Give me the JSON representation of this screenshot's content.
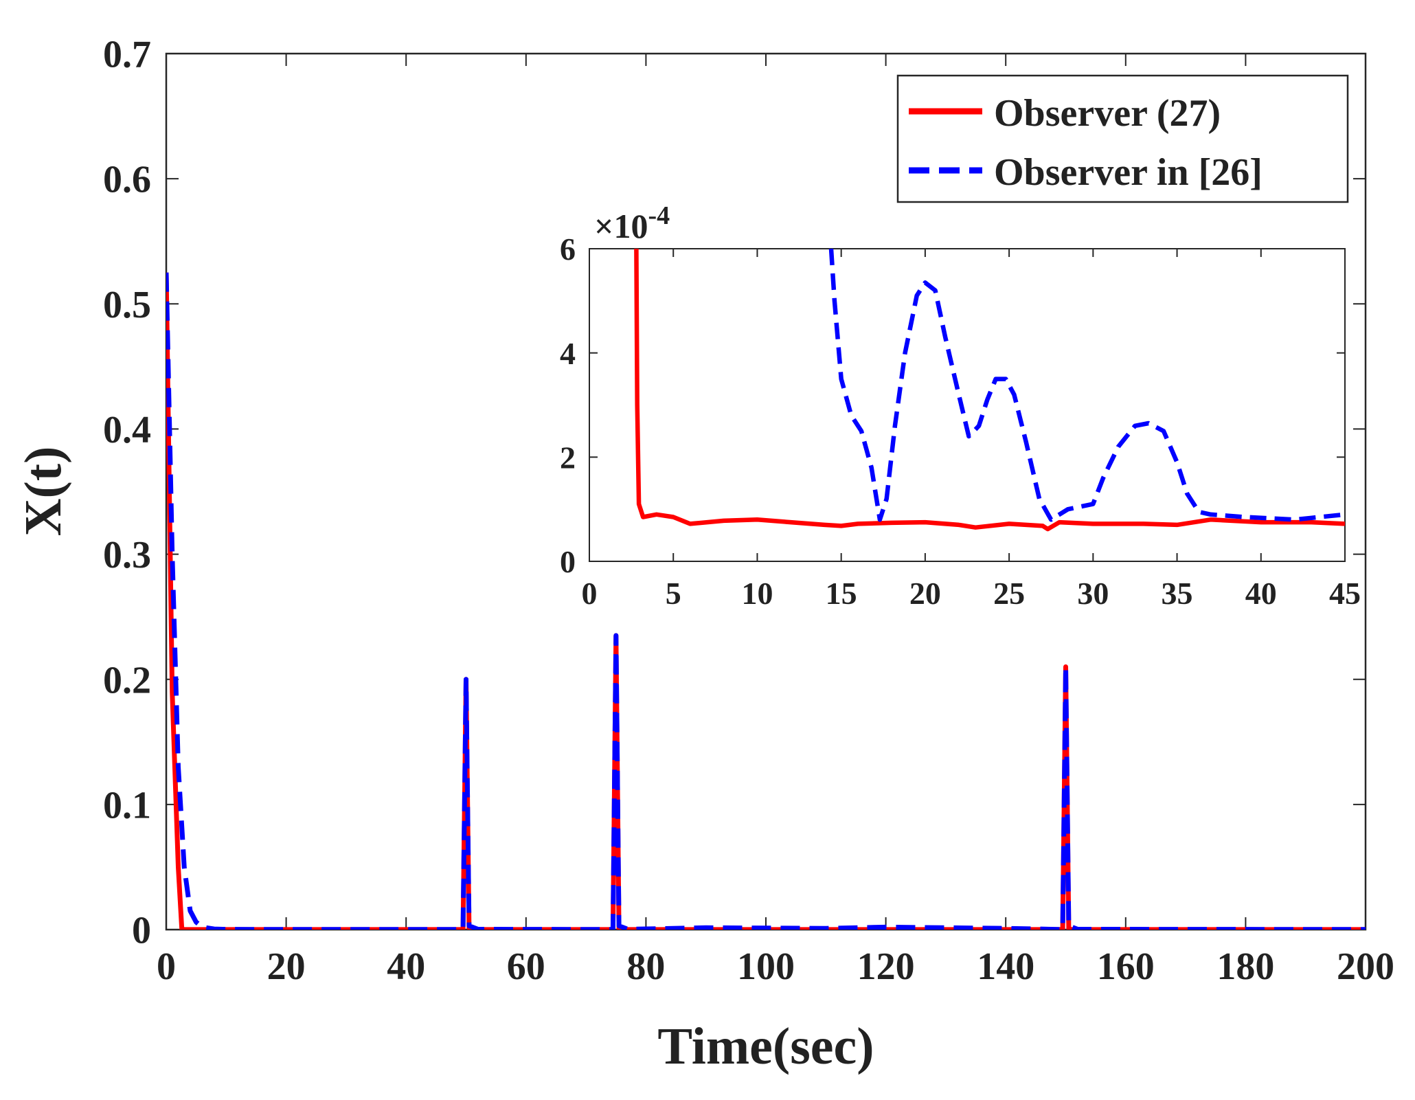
{
  "colors": {
    "observer27": "#ff0000",
    "observer26": "#0000ff",
    "axis": "#262626",
    "text": "#222222"
  },
  "chart_data": [
    {
      "id": "main",
      "type": "line",
      "title": "",
      "xlabel": "Time(sec)",
      "ylabel": "X(t)",
      "xlim": [
        0,
        200
      ],
      "ylim": [
        0,
        0.7
      ],
      "xticks": [
        0,
        20,
        40,
        60,
        80,
        100,
        120,
        140,
        160,
        180,
        200
      ],
      "yticks": [
        0,
        0.1,
        0.2,
        0.3,
        0.4,
        0.5,
        0.6,
        0.7
      ],
      "grid": false,
      "legend_position": "top-right",
      "series": [
        {
          "name": "Observer (27)",
          "style": "solid",
          "x": [
            0,
            1,
            2,
            2.6,
            3,
            10,
            49.5,
            50,
            50.5,
            51,
            74.5,
            75,
            75.5,
            76,
            149.5,
            150,
            150.5,
            151,
            200
          ],
          "y": [
            0.525,
            0.19,
            0.05,
            0.0006,
            8e-05,
            7e-05,
            7e-05,
            0.2,
            0.0006,
            7e-05,
            7e-05,
            0.235,
            0.0006,
            7e-05,
            7e-05,
            0.21,
            0.0006,
            7e-05,
            7e-05
          ]
        },
        {
          "name": "Observer in [26]",
          "style": "dashed",
          "x": [
            0,
            1,
            2,
            3,
            4,
            5,
            6,
            8,
            10,
            20,
            49.5,
            50,
            50.5,
            52,
            74.5,
            75,
            75.5,
            77,
            90,
            110,
            120,
            140,
            149.5,
            150,
            150.5,
            152,
            200
          ],
          "y": [
            0.525,
            0.3,
            0.13,
            0.05,
            0.015,
            0.006,
            0.002,
            0.0005,
            0.0002,
            0.0001,
            0.0001,
            0.2,
            0.003,
            0.0003,
            0.0001,
            0.235,
            0.003,
            0.0003,
            0.0015,
            0.001,
            0.002,
            0.001,
            0.0001,
            0.21,
            0.003,
            0.0003,
            0.0001
          ]
        }
      ]
    },
    {
      "id": "inset",
      "type": "line",
      "title": "",
      "xlabel": "",
      "ylabel": "",
      "axis_exponent": "×10",
      "axis_exponent_power": "-4",
      "xlim": [
        0,
        45
      ],
      "ylim": [
        0,
        6
      ],
      "xticks": [
        0,
        5,
        10,
        15,
        20,
        25,
        30,
        35,
        40,
        45
      ],
      "yticks": [
        0,
        2,
        4,
        6
      ],
      "grid": false,
      "series": [
        {
          "name": "Observer (27)",
          "style": "solid",
          "x": [
            2.8,
            2.85,
            2.95,
            3.2,
            4,
            5,
            6,
            8,
            10,
            12,
            14,
            15,
            16,
            18,
            20,
            22,
            23,
            25,
            27,
            27.3,
            28,
            30,
            33,
            35,
            37,
            40,
            43,
            45
          ],
          "y": [
            6,
            3.0,
            1.1,
            0.85,
            0.9,
            0.85,
            0.72,
            0.78,
            0.8,
            0.75,
            0.7,
            0.68,
            0.72,
            0.74,
            0.75,
            0.7,
            0.65,
            0.72,
            0.68,
            0.62,
            0.75,
            0.72,
            0.72,
            0.7,
            0.8,
            0.75,
            0.75,
            0.72
          ]
        },
        {
          "name": "Observer in [26]",
          "style": "dashed",
          "x": [
            14.4,
            14.6,
            15,
            15.6,
            16.2,
            16.8,
            17.3,
            17.7,
            18.2,
            18.8,
            19.5,
            20.0,
            20.6,
            21.2,
            22,
            22.6,
            23.2,
            23.7,
            24.2,
            24.8,
            25.3,
            26,
            26.8,
            27.5,
            28.5,
            30,
            30.6,
            31.5,
            32.5,
            33.3,
            34.2,
            35,
            35.6,
            36.3,
            37,
            39,
            42,
            45
          ],
          "y": [
            6,
            5.0,
            3.5,
            2.8,
            2.5,
            1.8,
            0.8,
            1.2,
            2.6,
            4.0,
            5.1,
            5.35,
            5.2,
            4.3,
            3.2,
            2.4,
            2.6,
            3.1,
            3.5,
            3.5,
            3.2,
            2.3,
            1.2,
            0.8,
            1.0,
            1.1,
            1.6,
            2.2,
            2.6,
            2.65,
            2.5,
            1.9,
            1.3,
            0.95,
            0.9,
            0.85,
            0.8,
            0.9
          ]
        }
      ]
    }
  ]
}
